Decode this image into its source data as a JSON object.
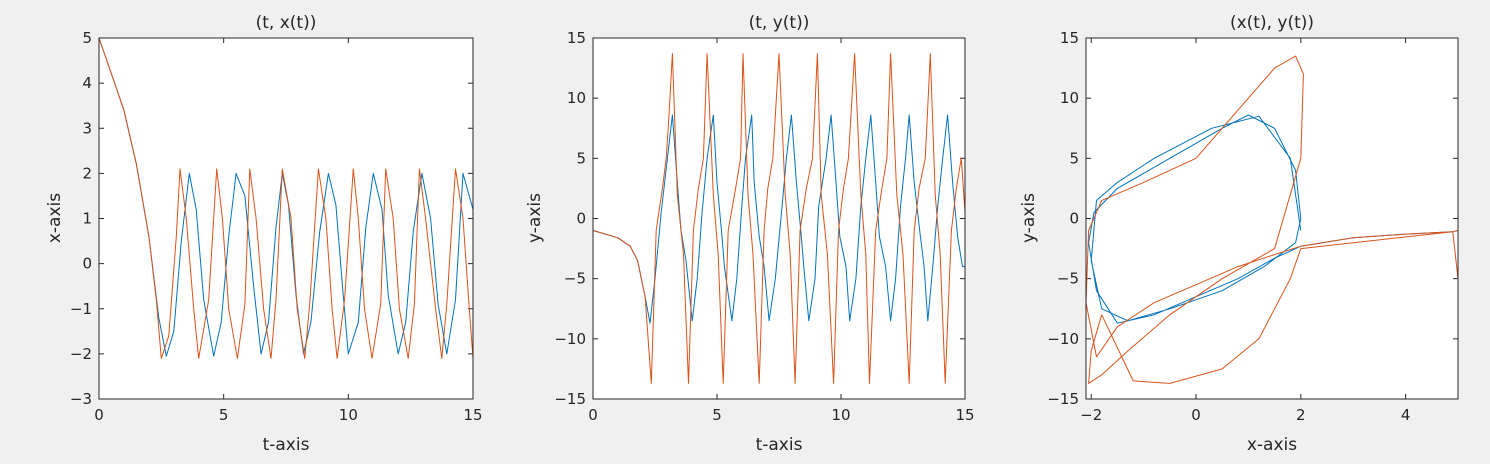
{
  "colors": {
    "background": "#f0f0f0",
    "axes_bg": "#ffffff",
    "axis": "#262626",
    "series_blue": "#0072bd",
    "series_orange": "#d95319"
  },
  "chart_data": [
    {
      "type": "line",
      "title": "(t, x(t))",
      "xlabel": "t-axis",
      "ylabel": "x-axis",
      "xlim": [
        0,
        15
      ],
      "ylim": [
        -3,
        5
      ],
      "xticks": [
        0,
        5,
        10,
        15
      ],
      "yticks": [
        -3,
        -2,
        -1,
        0,
        1,
        2,
        3,
        4,
        5
      ],
      "grid": false,
      "series": [
        {
          "color": "#0072bd",
          "x": [
            0,
            0.5,
            1.0,
            1.5,
            2.0,
            2.4,
            2.7,
            3.0,
            3.3,
            3.62,
            3.9,
            4.2,
            4.6,
            4.9,
            5.2,
            5.5,
            5.85,
            6.2,
            6.5,
            6.8,
            7.1,
            7.35,
            7.6,
            7.9,
            8.2,
            8.5,
            8.85,
            9.2,
            9.5,
            9.75,
            10.0,
            10.4,
            10.7,
            11.0,
            11.35,
            11.6,
            12.0,
            12.3,
            12.6,
            12.95,
            13.3,
            13.6,
            13.95,
            14.3,
            14.6,
            15.0
          ],
          "y": [
            5,
            4.2,
            3.4,
            2.2,
            0.6,
            -1.2,
            -2.05,
            -1.5,
            0.5,
            2.0,
            1.2,
            -0.8,
            -2.05,
            -1.3,
            0.6,
            2.0,
            1.5,
            -0.5,
            -2.0,
            -1.3,
            0.8,
            2.0,
            1.3,
            -0.7,
            -2.0,
            -1.3,
            0.7,
            2.0,
            1.3,
            -0.4,
            -2.0,
            -1.3,
            0.8,
            2.0,
            1.2,
            -0.7,
            -2.0,
            -1.3,
            0.7,
            2.0,
            1.0,
            -0.9,
            -2.0,
            -0.8,
            2.0,
            1.2
          ]
        },
        {
          "color": "#d95319",
          "x": [
            0,
            0.5,
            1.0,
            1.5,
            2.0,
            2.3,
            2.5,
            2.8,
            3.1,
            3.25,
            3.5,
            3.8,
            4.0,
            4.4,
            4.72,
            4.95,
            5.2,
            5.55,
            5.85,
            6.05,
            6.3,
            6.6,
            6.9,
            7.1,
            7.35,
            7.7,
            7.95,
            8.25,
            8.45,
            8.8,
            9.1,
            9.35,
            9.55,
            9.85,
            10.2,
            10.4,
            10.65,
            10.95,
            11.3,
            11.5,
            11.8,
            12.05,
            12.4,
            12.65,
            12.85,
            13.1,
            13.5,
            13.75,
            13.95,
            14.3,
            14.6,
            14.85,
            15.0
          ],
          "y": [
            5,
            4.2,
            3.4,
            2.2,
            0.6,
            -0.8,
            -2.1,
            -1.6,
            0.6,
            2.1,
            1.0,
            -1.0,
            -2.1,
            -0.8,
            2.1,
            1.0,
            -1.0,
            -2.1,
            -0.9,
            2.1,
            1.0,
            -1.0,
            -2.1,
            -0.8,
            2.1,
            1.0,
            -1.0,
            -2.1,
            -0.9,
            2.1,
            1.0,
            -1.0,
            -2.1,
            -0.8,
            2.1,
            1.0,
            -1.0,
            -2.1,
            -0.9,
            2.1,
            1.0,
            -1.0,
            -2.1,
            -0.9,
            2.1,
            1.0,
            -1.0,
            -2.1,
            -0.9,
            2.1,
            1.0,
            -1.0,
            -2.1
          ]
        }
      ]
    },
    {
      "type": "line",
      "title": "(t, y(t))",
      "xlabel": "t-axis",
      "ylabel": "y-axis",
      "xlim": [
        0,
        15
      ],
      "ylim": [
        -15,
        15
      ],
      "xticks": [
        0,
        5,
        10,
        15
      ],
      "yticks": [
        -15,
        -10,
        -5,
        0,
        5,
        10,
        15
      ],
      "grid": false,
      "series": [
        {
          "color": "#0072bd",
          "x": [
            0,
            0.5,
            1.0,
            1.5,
            1.8,
            2.1,
            2.3,
            2.5,
            2.75,
            3.0,
            3.2,
            3.4,
            3.55,
            3.75,
            4.0,
            4.2,
            4.4,
            4.6,
            4.85,
            5.0,
            5.2,
            5.3,
            5.6,
            5.8,
            6.0,
            6.15,
            6.4,
            6.5,
            6.7,
            6.9,
            7.1,
            7.35,
            7.6,
            7.8,
            8.0,
            8.2,
            8.4,
            8.5,
            8.7,
            8.95,
            9.1,
            9.4,
            9.6,
            9.8,
            9.95,
            10.2,
            10.35,
            10.6,
            10.8,
            11.0,
            11.2,
            11.4,
            11.55,
            11.8,
            12.0,
            12.2,
            12.4,
            12.6,
            12.75,
            12.95,
            13.2,
            13.35,
            13.5,
            13.7,
            13.9,
            14.1,
            14.3,
            14.5,
            14.7,
            14.9,
            15.0
          ],
          "y": [
            -1,
            -1.3,
            -1.6,
            -2.3,
            -3.5,
            -6.5,
            -8.7,
            -5.0,
            0.5,
            5.0,
            8.6,
            3.0,
            -1.0,
            -3.5,
            -8.5,
            -5.0,
            0.5,
            5.0,
            8.6,
            3.0,
            -1.5,
            -4.0,
            -8.5,
            -5.0,
            1.0,
            5.0,
            8.6,
            3.0,
            -1.5,
            -4.0,
            -8.5,
            -5.0,
            0.5,
            5.0,
            8.6,
            3.0,
            -1.5,
            -4.0,
            -8.5,
            -5.0,
            1.0,
            5.0,
            8.6,
            3.0,
            -1.5,
            -4.0,
            -8.5,
            -5.0,
            1.0,
            5.0,
            8.6,
            3.0,
            -1.5,
            -4.0,
            -8.5,
            -5.0,
            1.0,
            5.0,
            8.6,
            3.0,
            -1.5,
            -4.0,
            -8.5,
            -4.0,
            1.0,
            5.0,
            8.6,
            3.0,
            -1.5,
            -4.0,
            -4.0
          ]
        },
        {
          "color": "#d95319",
          "x": [
            0,
            0.5,
            1.0,
            1.5,
            1.8,
            2.1,
            2.35,
            2.55,
            2.8,
            2.95,
            3.05,
            3.2,
            3.4,
            3.65,
            3.85,
            4.05,
            4.25,
            4.45,
            4.6,
            4.85,
            5.05,
            5.25,
            5.45,
            5.75,
            5.95,
            6.05,
            6.25,
            6.45,
            6.7,
            6.9,
            7.05,
            7.25,
            7.5,
            7.75,
            7.95,
            8.15,
            8.35,
            8.6,
            8.85,
            9.05,
            9.2,
            9.45,
            9.7,
            9.9,
            10.1,
            10.3,
            10.55,
            10.8,
            11.0,
            11.15,
            11.4,
            11.65,
            11.85,
            12.0,
            12.25,
            12.5,
            12.75,
            12.95,
            13.15,
            13.4,
            13.6,
            13.8,
            14.0,
            14.2,
            14.45,
            14.65,
            14.85,
            15.0
          ],
          "y": [
            -1,
            -1.3,
            -1.6,
            -2.3,
            -3.5,
            -6.5,
            -13.7,
            -1.0,
            2.5,
            5.0,
            8.0,
            13.7,
            2.0,
            -3.0,
            -13.7,
            -1.0,
            2.5,
            5.0,
            13.7,
            2.0,
            -3.0,
            -13.7,
            -1.0,
            2.5,
            5.0,
            13.7,
            2.0,
            -3.0,
            -13.7,
            -1.0,
            2.5,
            5.0,
            13.7,
            2.0,
            -3.0,
            -13.7,
            -1.0,
            2.5,
            5.0,
            13.7,
            2.0,
            -3.0,
            -13.7,
            -1.0,
            2.5,
            5.0,
            13.7,
            2.0,
            -3.0,
            -13.7,
            -1.0,
            2.5,
            5.0,
            13.7,
            2.0,
            -3.0,
            -13.7,
            -1.0,
            2.5,
            5.0,
            13.7,
            2.0,
            -3.0,
            -13.7,
            -1.0,
            2.5,
            5.0,
            0.5
          ]
        }
      ]
    },
    {
      "type": "line",
      "title": "(x(t), y(t))",
      "xlabel": "x-axis",
      "ylabel": "y-axis",
      "xlim": [
        -2.1,
        5
      ],
      "ylim": [
        -15,
        15
      ],
      "xticks": [
        -2,
        0,
        2,
        4
      ],
      "yticks": [
        -15,
        -10,
        -5,
        0,
        5,
        10,
        15
      ],
      "grid": false,
      "series": [
        {
          "color": "#0072bd",
          "x": [
            5.0,
            4.9,
            4.0,
            3.0,
            2.0,
            1.5,
            0.8,
            0.0,
            -0.8,
            -1.5,
            -1.9,
            -2.05,
            -1.95,
            -1.5,
            -0.5,
            0.5,
            1.0,
            1.5,
            1.9,
            2.0,
            1.9,
            1.3,
            0.5,
            -0.5,
            -1.3,
            -1.8,
            -2.0,
            -1.9,
            -1.5,
            -0.8,
            0.3,
            1.2,
            1.8,
            2.0
          ],
          "y": [
            -1.0,
            -1.1,
            -1.3,
            -1.6,
            -2.3,
            -3.3,
            -5.0,
            -6.5,
            -8.0,
            -8.7,
            -6.0,
            -2.0,
            0.5,
            2.5,
            5.0,
            7.5,
            8.6,
            7.5,
            4.0,
            0.0,
            -2.0,
            -4.0,
            -6.0,
            -7.5,
            -8.5,
            -7.5,
            -3.5,
            1.5,
            3.0,
            5.0,
            7.5,
            8.5,
            5.0,
            -1.0
          ]
        },
        {
          "color": "#d95319",
          "x": [
            5.0,
            4.9,
            4.0,
            3.0,
            2.0,
            1.5,
            0.8,
            0.0,
            -0.8,
            -1.5,
            -1.9,
            -2.1,
            -2.05,
            -1.8,
            -1.0,
            0.0,
            0.8,
            1.5,
            1.9,
            2.05,
            2.0,
            1.5,
            0.5,
            -0.5,
            -1.3,
            -1.8,
            -2.05,
            -2.0,
            -1.8,
            -1.2,
            -0.5,
            0.5,
            1.2,
            1.8,
            2.0,
            4.9,
            5.0
          ],
          "y": [
            -1.0,
            -1.1,
            -1.3,
            -1.6,
            -2.3,
            -3.0,
            -4.0,
            -5.5,
            -7.0,
            -9.0,
            -11.5,
            -7.0,
            -1.0,
            1.5,
            3.0,
            5.0,
            9.0,
            12.5,
            13.5,
            12.0,
            5.0,
            -2.5,
            -5.0,
            -8.0,
            -11.0,
            -13.0,
            -13.7,
            -11.0,
            -8.0,
            -13.5,
            -13.7,
            -12.5,
            -10.0,
            -5.0,
            -2.5,
            -1.1,
            -5.0
          ]
        }
      ]
    }
  ]
}
